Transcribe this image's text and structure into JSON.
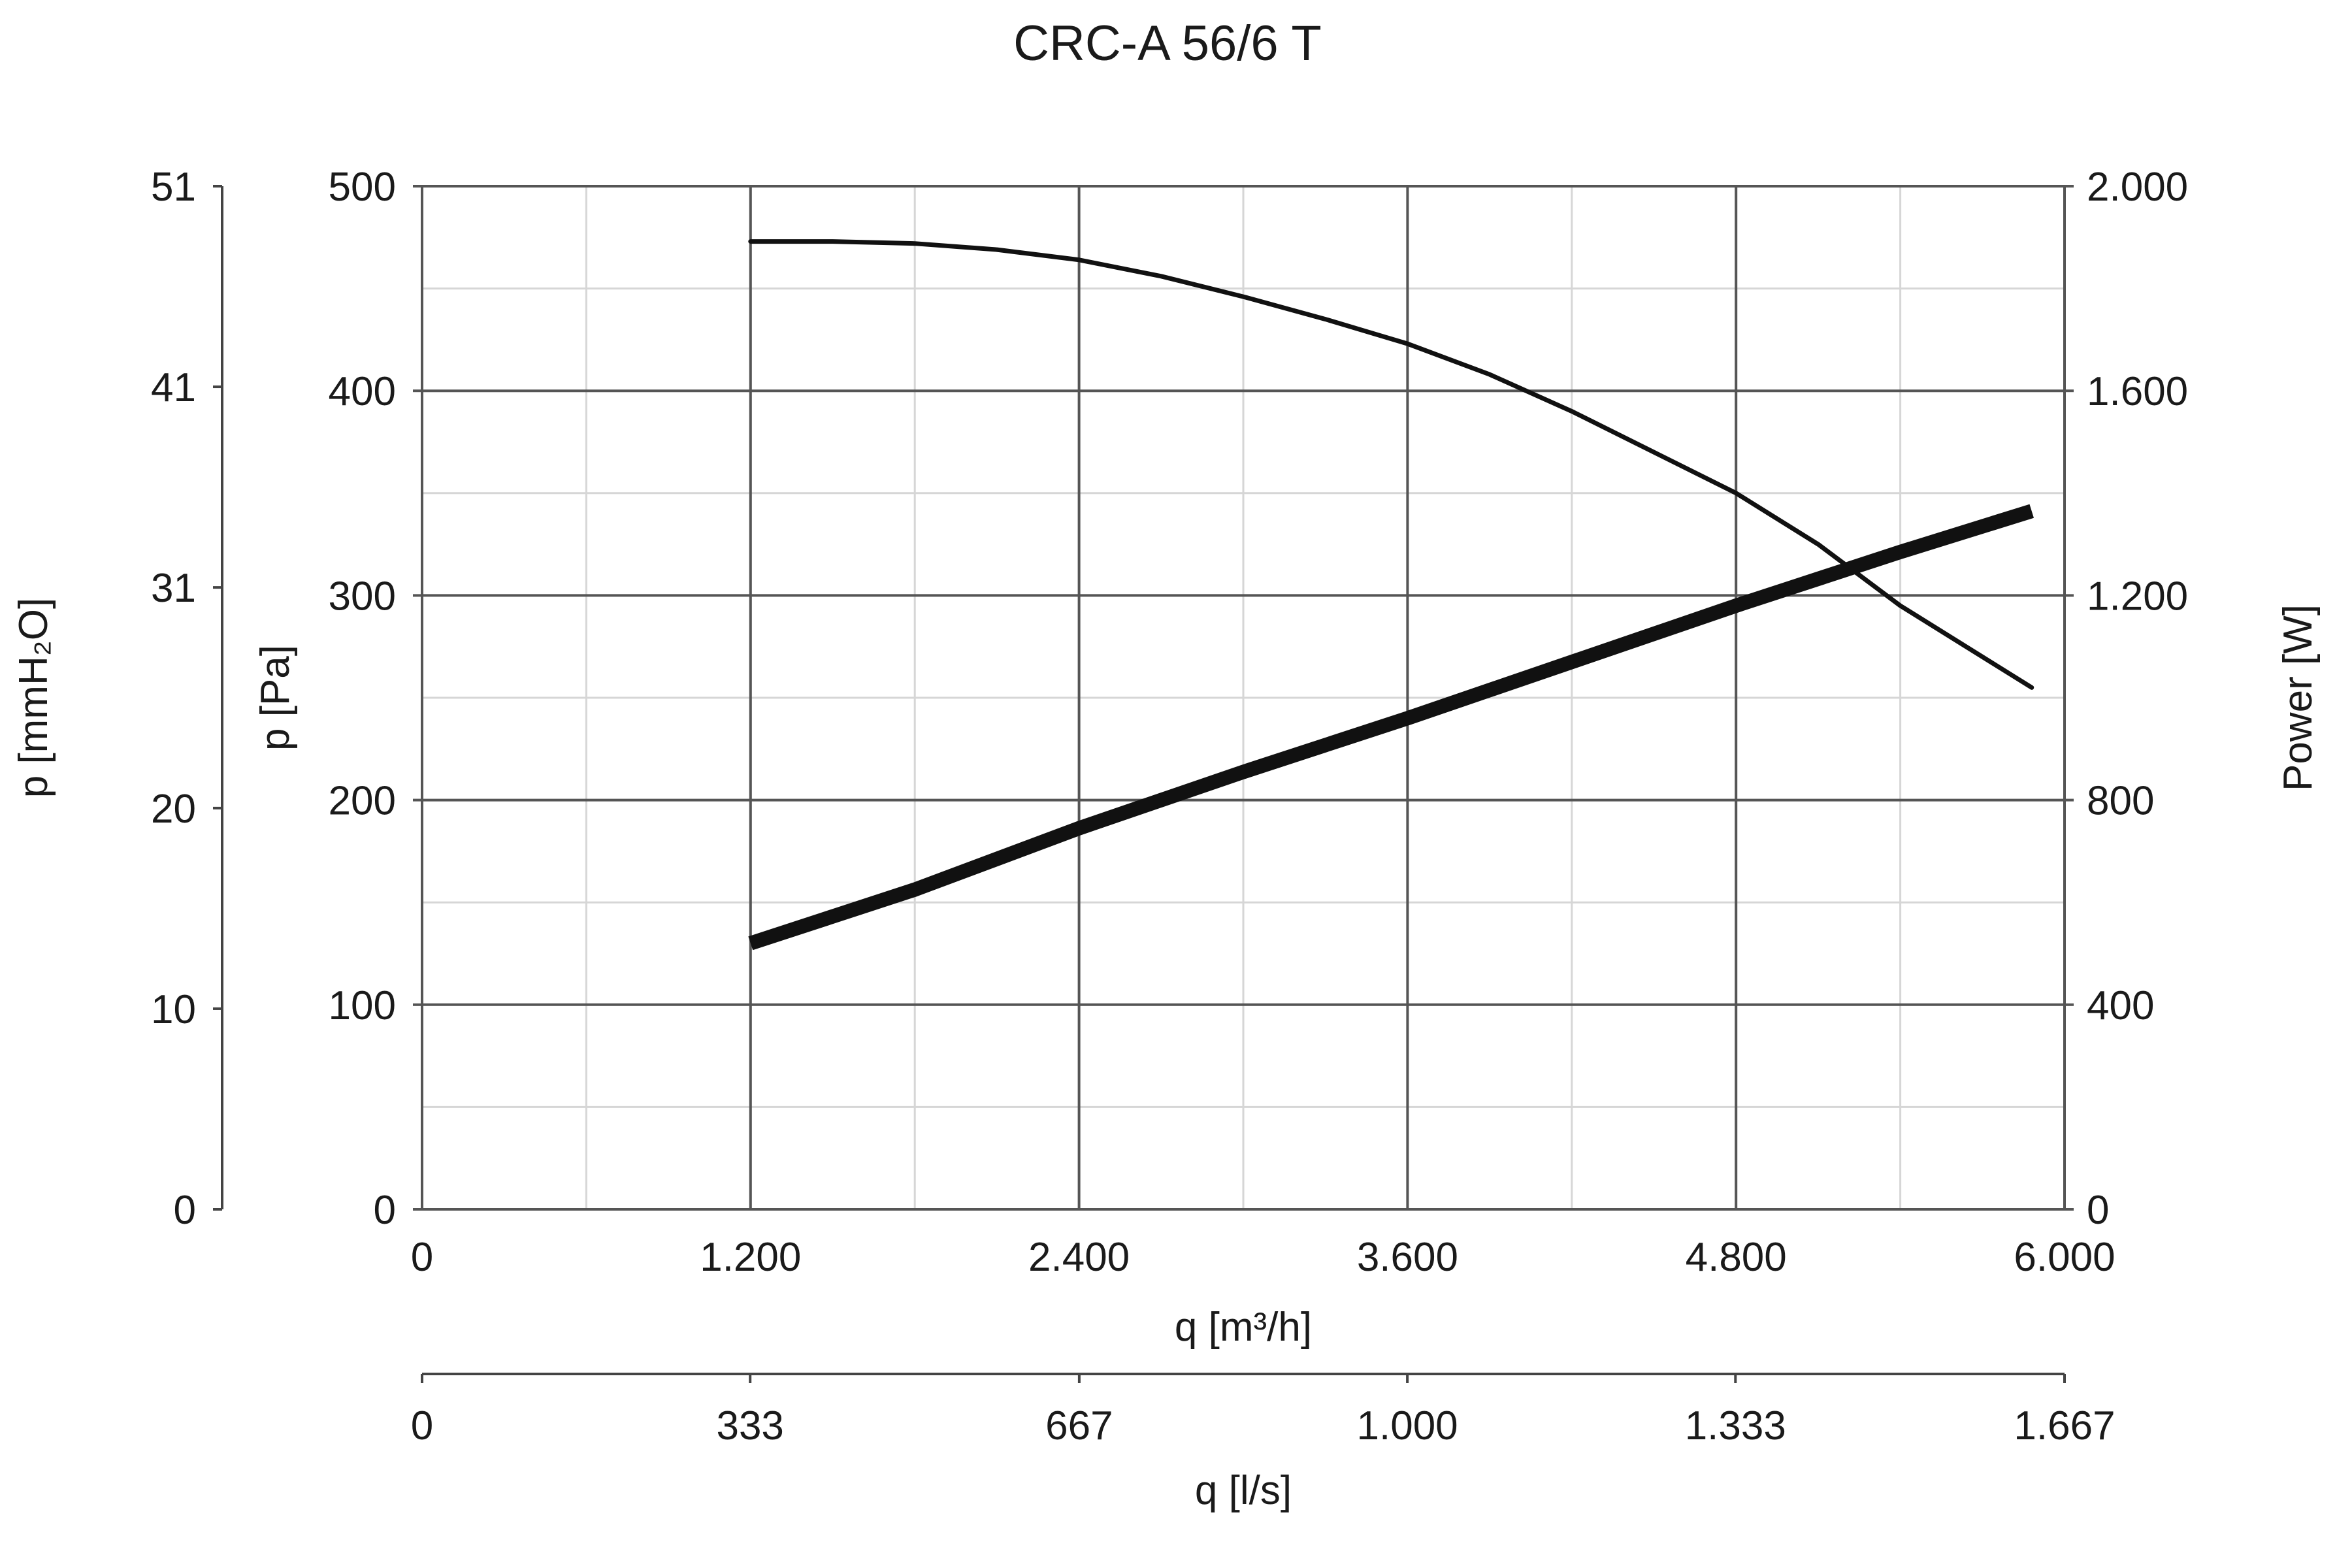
{
  "chart_data": {
    "type": "line",
    "title": "CRC-A 56/6 T",
    "x_axis": {
      "label": "q [m³/h]",
      "range": [
        0,
        6000
      ],
      "ticks": [
        0,
        1200,
        2400,
        3600,
        4800,
        6000
      ],
      "tick_labels": [
        "0",
        "1.200",
        "2.400",
        "3.600",
        "4.800",
        "6.000"
      ]
    },
    "x_axis_secondary": {
      "label": "q [l/s]",
      "range": [
        0,
        1667
      ],
      "ticks": [
        0,
        333,
        667,
        1000,
        1333,
        1667
      ],
      "tick_labels": [
        "0",
        "333",
        "667",
        "1.000",
        "1.333",
        "1.667"
      ]
    },
    "y_axis_left": {
      "label": "p [Pa]",
      "range": [
        0,
        500
      ],
      "ticks": [
        0,
        100,
        200,
        300,
        400,
        500
      ],
      "tick_labels": [
        "0",
        "100",
        "200",
        "300",
        "400",
        "500"
      ]
    },
    "y_axis_outer_left": {
      "label": "p [mmH₂O]",
      "range": [
        0,
        51
      ],
      "ticks": [
        0,
        10,
        20,
        31,
        41,
        51
      ],
      "tick_labels": [
        "0",
        "10",
        "20",
        "31",
        "41",
        "51"
      ]
    },
    "y_axis_right": {
      "label": "Power [W]",
      "range": [
        0,
        2000
      ],
      "ticks": [
        0,
        400,
        800,
        1200,
        1600,
        2000
      ],
      "tick_labels": [
        "0",
        "400",
        "800",
        "1.200",
        "1.600",
        "2.000"
      ]
    },
    "grid": true,
    "minor_grid": true,
    "series": [
      {
        "axis": "left",
        "color": "#111111",
        "points": [
          [
            1200,
            473
          ],
          [
            1500,
            473
          ],
          [
            1800,
            472
          ],
          [
            2100,
            469
          ],
          [
            2400,
            464
          ],
          [
            2700,
            456
          ],
          [
            3000,
            446
          ],
          [
            3300,
            435
          ],
          [
            3600,
            423
          ],
          [
            3900,
            408
          ],
          [
            4200,
            390
          ],
          [
            4500,
            370
          ],
          [
            4800,
            350
          ],
          [
            5100,
            325
          ],
          [
            5400,
            295
          ],
          [
            5880,
            255
          ]
        ]
      },
      {
        "axis": "right",
        "color": "#111111",
        "points": [
          [
            1200,
            520
          ],
          [
            1800,
            625
          ],
          [
            2400,
            745
          ],
          [
            3000,
            855
          ],
          [
            3600,
            960
          ],
          [
            4200,
            1070
          ],
          [
            4800,
            1180
          ],
          [
            5400,
            1285
          ],
          [
            5880,
            1365
          ]
        ]
      }
    ]
  }
}
